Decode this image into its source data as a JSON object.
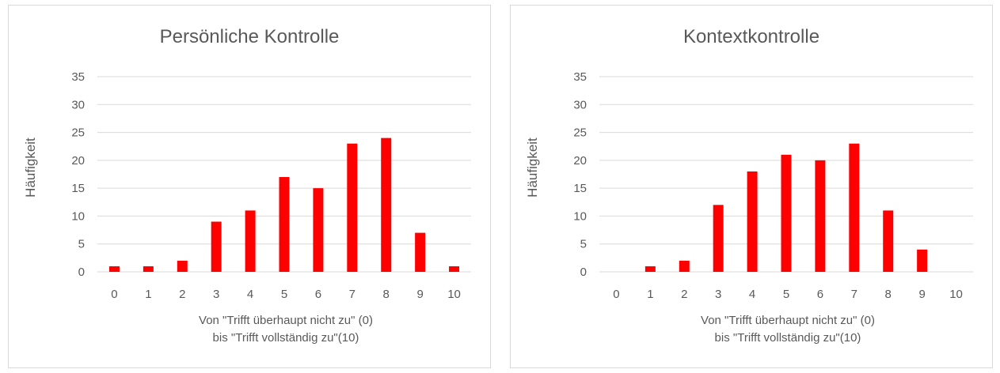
{
  "chart_data": [
    {
      "type": "bar",
      "title": "Persönliche Kontrolle",
      "xlabel_lines": [
        "Von \"Trifft überhaupt nicht zu\" (0)",
        "bis \"Trifft vollständig zu\"(10)"
      ],
      "ylabel": "Häufigkeit",
      "categories": [
        "0",
        "1",
        "2",
        "3",
        "4",
        "5",
        "6",
        "7",
        "8",
        "9",
        "10"
      ],
      "values": [
        1,
        1,
        2,
        9,
        11,
        17,
        15,
        23,
        24,
        7,
        1
      ],
      "ylim": [
        0,
        35
      ],
      "yticks": [
        0,
        5,
        10,
        15,
        20,
        25,
        30,
        35
      ],
      "grid": true,
      "legend": "none",
      "bar_color": "#ff0000"
    },
    {
      "type": "bar",
      "title": "Kontextkontrolle",
      "xlabel_lines": [
        "Von \"Trifft überhaupt nicht zu\" (0)",
        "bis \"Trifft vollständig zu\"(10)"
      ],
      "ylabel": "Häufigkeit",
      "categories": [
        "0",
        "1",
        "2",
        "3",
        "4",
        "5",
        "6",
        "7",
        "8",
        "9",
        "10"
      ],
      "values": [
        0,
        1,
        2,
        12,
        18,
        21,
        20,
        23,
        11,
        4,
        0
      ],
      "ylim": [
        0,
        35
      ],
      "yticks": [
        0,
        5,
        10,
        15,
        20,
        25,
        30,
        35
      ],
      "grid": true,
      "legend": "none",
      "bar_color": "#ff0000"
    }
  ]
}
